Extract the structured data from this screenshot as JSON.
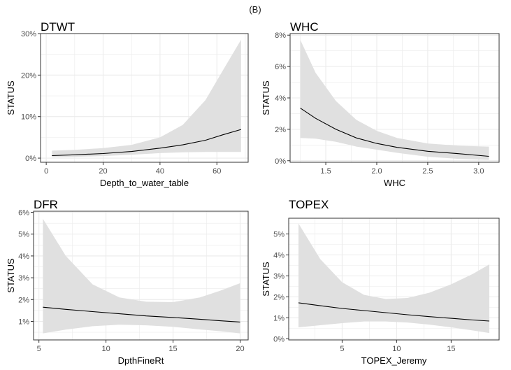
{
  "figure_title": "(B)",
  "colors": {
    "band": "#e0e0e0",
    "line": "#000000",
    "grid": "#ebebeb",
    "border": "#333333"
  },
  "chart_data": [
    {
      "type": "line",
      "title": "DTWT",
      "xlabel": "Depth_to_water_table",
      "ylabel": "STATUS",
      "xlim": [
        -2,
        71
      ],
      "ylim": [
        -0.01,
        0.3
      ],
      "xticks": [
        0,
        20,
        40,
        60
      ],
      "xtick_labels": [
        "0",
        "20",
        "40",
        "60"
      ],
      "yticks": [
        0,
        0.1,
        0.2,
        0.3
      ],
      "ytick_labels": [
        "0%",
        "10%",
        "20%",
        "30%"
      ],
      "grid": true,
      "x": [
        2,
        10,
        20,
        30,
        40,
        48,
        56,
        62,
        68.5
      ],
      "y": [
        0.006,
        0.008,
        0.011,
        0.016,
        0.024,
        0.032,
        0.043,
        0.056,
        0.069
      ],
      "lower": [
        0.002,
        0.003,
        0.005,
        0.008,
        0.012,
        0.014,
        0.015,
        0.015,
        0.015
      ],
      "upper": [
        0.018,
        0.02,
        0.024,
        0.032,
        0.05,
        0.08,
        0.14,
        0.21,
        0.285
      ]
    },
    {
      "type": "line",
      "title": "WHC",
      "xlabel": "WHC",
      "ylabel": "STATUS",
      "xlim": [
        1.15,
        3.2
      ],
      "ylim": [
        -0.001,
        0.081
      ],
      "xticks": [
        1.5,
        2.0,
        2.5,
        3.0
      ],
      "xtick_labels": [
        "1.5",
        "2.0",
        "2.5",
        "3.0"
      ],
      "yticks": [
        0,
        0.02,
        0.04,
        0.06,
        0.08
      ],
      "ytick_labels": [
        "0%",
        "2%",
        "4%",
        "6%",
        "8%"
      ],
      "grid": true,
      "x": [
        1.25,
        1.4,
        1.6,
        1.8,
        2.0,
        2.2,
        2.5,
        2.8,
        3.1
      ],
      "y": [
        0.0335,
        0.027,
        0.02,
        0.0145,
        0.011,
        0.0085,
        0.006,
        0.0045,
        0.0028
      ],
      "lower": [
        0.0145,
        0.014,
        0.012,
        0.009,
        0.007,
        0.005,
        0.0025,
        0.0012,
        0.0005
      ],
      "upper": [
        0.077,
        0.056,
        0.038,
        0.026,
        0.019,
        0.0145,
        0.011,
        0.0095,
        0.009
      ]
    },
    {
      "type": "line",
      "title": "DFR",
      "xlabel": "DpthFineRt",
      "ylabel": "STATUS",
      "xlim": [
        4.6,
        20.6
      ],
      "ylim": [
        0.0015,
        0.0605
      ],
      "xticks": [
        5,
        10,
        15,
        20
      ],
      "xtick_labels": [
        "5",
        "10",
        "15",
        "20"
      ],
      "yticks": [
        0.01,
        0.02,
        0.03,
        0.04,
        0.05,
        0.06
      ],
      "ytick_labels": [
        "1%",
        "2%",
        "3%",
        "4%",
        "5%",
        "6%"
      ],
      "grid": true,
      "x": [
        5.3,
        7,
        9,
        11,
        13,
        15,
        17,
        18.5,
        20
      ],
      "y": [
        0.0165,
        0.0155,
        0.0145,
        0.0135,
        0.0125,
        0.0118,
        0.011,
        0.0103,
        0.0097
      ],
      "lower": [
        0.0045,
        0.0062,
        0.0078,
        0.0085,
        0.0082,
        0.0075,
        0.0063,
        0.0055,
        0.0045
      ],
      "upper": [
        0.057,
        0.04,
        0.027,
        0.021,
        0.019,
        0.0188,
        0.021,
        0.024,
        0.0275
      ]
    },
    {
      "type": "line",
      "title": "TOPEX",
      "xlabel": "TOPEX_Jeremy",
      "ylabel": "STATUS",
      "xlim": [
        0.1,
        19.4
      ],
      "ylim": [
        -0.0005,
        0.0575
      ],
      "xticks": [
        5,
        10,
        15
      ],
      "xtick_labels": [
        "5",
        "10",
        "15"
      ],
      "yticks": [
        0,
        0.01,
        0.02,
        0.03,
        0.04,
        0.05
      ],
      "ytick_labels": [
        "0%",
        "1%",
        "2%",
        "3%",
        "4%",
        "5%"
      ],
      "grid": true,
      "x": [
        1,
        3,
        5,
        7,
        9,
        11,
        13,
        15,
        17,
        18.5
      ],
      "y": [
        0.0172,
        0.0158,
        0.0145,
        0.0135,
        0.0125,
        0.0115,
        0.0106,
        0.0098,
        0.009,
        0.0085
      ],
      "lower": [
        0.0055,
        0.0065,
        0.0075,
        0.0083,
        0.0083,
        0.0078,
        0.0068,
        0.0055,
        0.004,
        0.0028
      ],
      "upper": [
        0.055,
        0.038,
        0.027,
        0.021,
        0.019,
        0.0195,
        0.022,
        0.026,
        0.031,
        0.0355
      ]
    }
  ]
}
